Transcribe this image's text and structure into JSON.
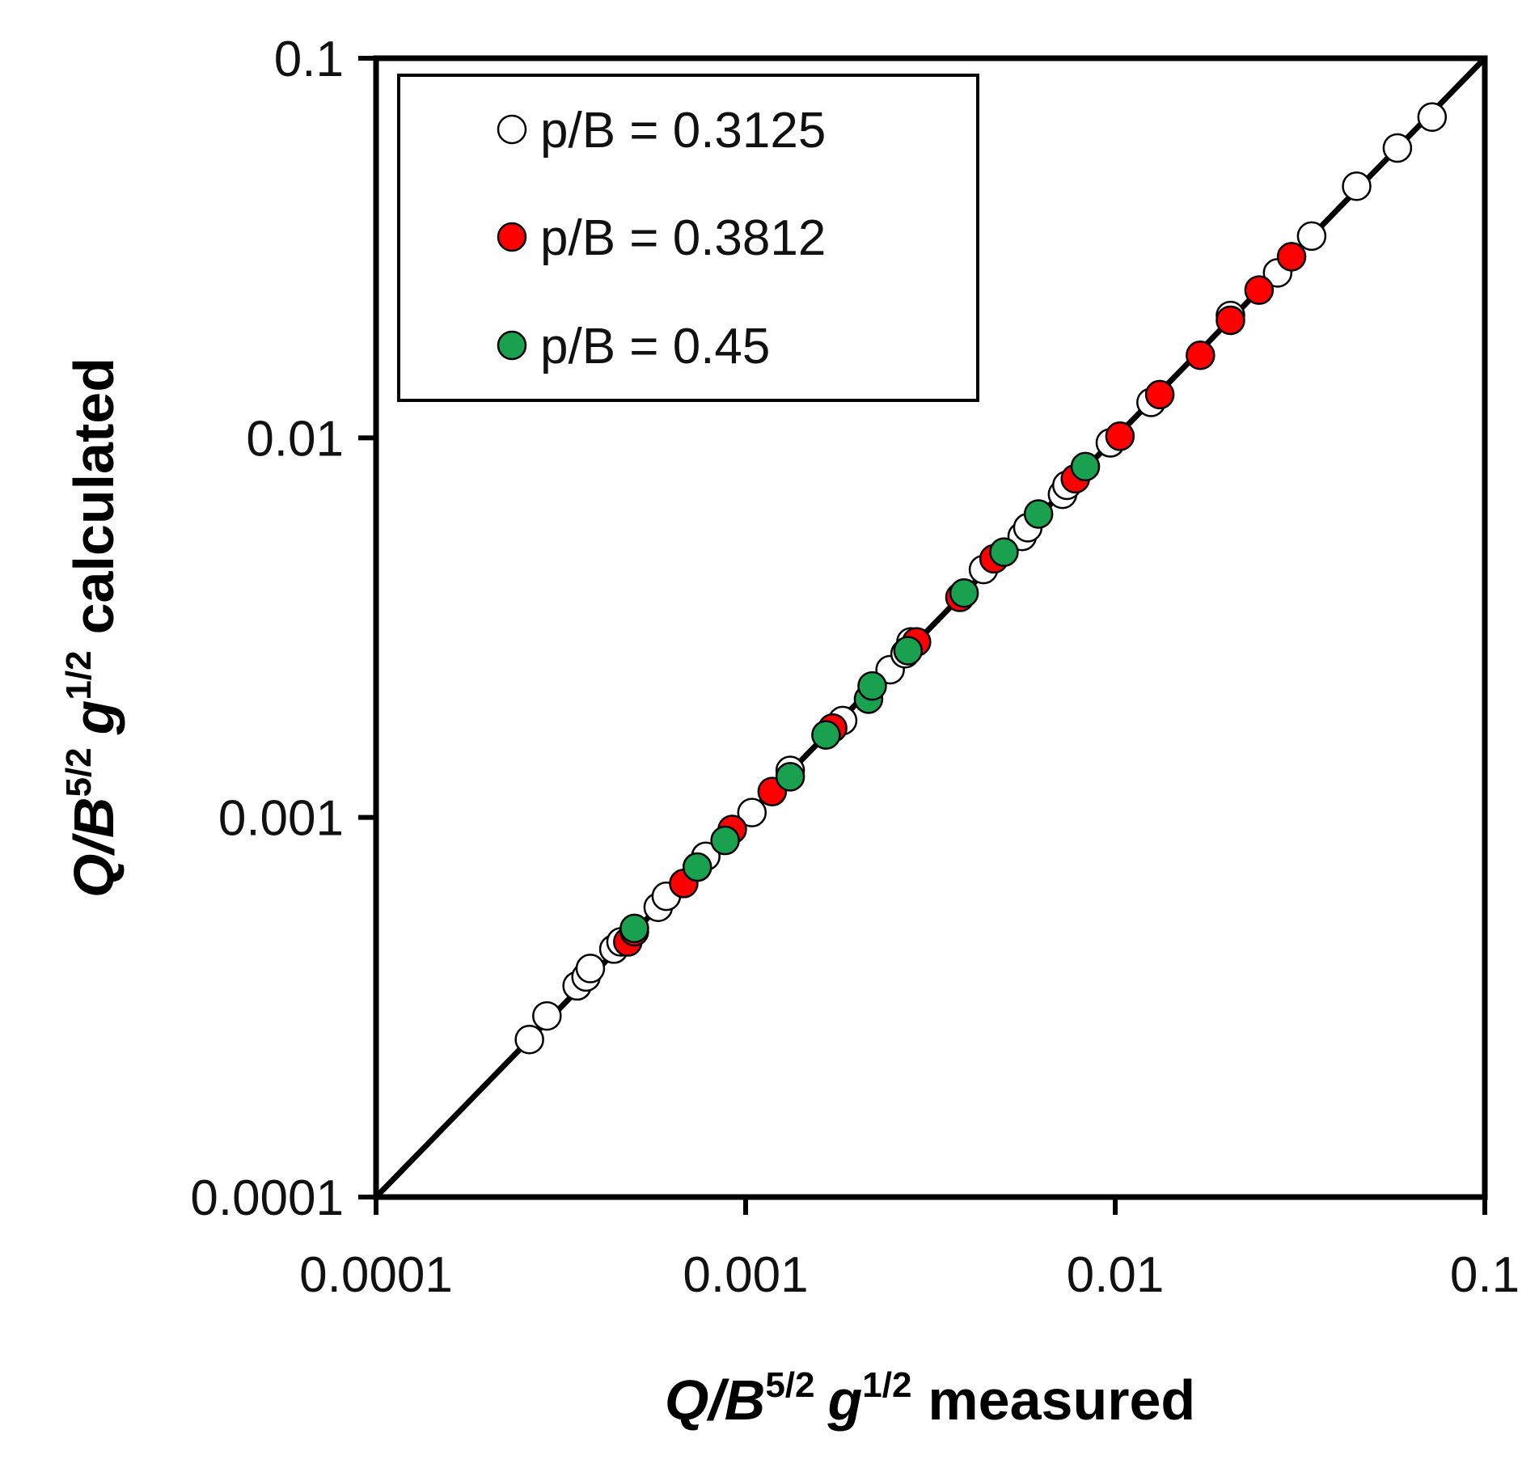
{
  "chart_data": {
    "type": "scatter",
    "title": "",
    "xlabel": {
      "q": "Q",
      "slash": "/",
      "b": "B",
      "b_exp": "5/2",
      "g": "g",
      "g_exp": "1/2",
      "suffix": "measured"
    },
    "ylabel": {
      "q": "Q",
      "slash": "/",
      "b": "B",
      "b_exp": "5/2",
      "g": "g",
      "g_exp": "1/2",
      "suffix": "calculated"
    },
    "xscale": "log",
    "yscale": "log",
    "xlim": [
      0.0001,
      0.1
    ],
    "ylim": [
      0.0001,
      0.1
    ],
    "xticks": [
      {
        "value": 0.0001,
        "label": "0.0001"
      },
      {
        "value": 0.001,
        "label": "0.001"
      },
      {
        "value": 0.01,
        "label": "0.01"
      },
      {
        "value": 0.1,
        "label": "0.1"
      }
    ],
    "yticks": [
      {
        "value": 0.0001,
        "label": "0.0001"
      },
      {
        "value": 0.001,
        "label": "0.001"
      },
      {
        "value": 0.01,
        "label": "0.01"
      },
      {
        "value": 0.1,
        "label": "0.1"
      }
    ],
    "grid": false,
    "reference_line": {
      "type": "1:1",
      "from": [
        0.0001,
        0.0001
      ],
      "to": [
        0.1,
        0.1
      ]
    },
    "legend": {
      "position": "top-left"
    },
    "series": [
      {
        "name": "p/B = 0.3125",
        "color": "#ffffff",
        "points": [
          [
            0.00026,
            0.00026
          ],
          [
            0.00029,
            0.0003
          ],
          [
            0.00035,
            0.00036
          ],
          [
            0.00037,
            0.00038
          ],
          [
            0.00038,
            0.0004
          ],
          [
            0.00044,
            0.00045
          ],
          [
            0.00046,
            0.00047
          ],
          [
            0.00058,
            0.00058
          ],
          [
            0.00061,
            0.00062
          ],
          [
            0.00074,
            0.00074
          ],
          [
            0.00078,
            0.00079
          ],
          [
            0.00104,
            0.00103
          ],
          [
            0.00132,
            0.00133
          ],
          [
            0.00183,
            0.0018
          ],
          [
            0.00246,
            0.00245
          ],
          [
            0.0027,
            0.0027
          ],
          [
            0.0028,
            0.0029
          ],
          [
            0.0044,
            0.0045
          ],
          [
            0.0056,
            0.0055
          ],
          [
            0.0058,
            0.0058
          ],
          [
            0.0072,
            0.0071
          ],
          [
            0.0074,
            0.0075
          ],
          [
            0.0097,
            0.0097
          ],
          [
            0.0125,
            0.0124
          ],
          [
            0.0205,
            0.021
          ],
          [
            0.0275,
            0.0272
          ],
          [
            0.034,
            0.034
          ],
          [
            0.045,
            0.046
          ],
          [
            0.058,
            0.058
          ],
          [
            0.072,
            0.07
          ]
        ]
      },
      {
        "name": "p/B = 0.3812",
        "color": "#ff0000",
        "points": [
          [
            0.00048,
            0.00047
          ],
          [
            0.0005,
            0.0005
          ],
          [
            0.00068,
            0.00067
          ],
          [
            0.00092,
            0.00093
          ],
          [
            0.00118,
            0.00117
          ],
          [
            0.00172,
            0.00172
          ],
          [
            0.0029,
            0.0029
          ],
          [
            0.0038,
            0.0038
          ],
          [
            0.0047,
            0.0048
          ],
          [
            0.0078,
            0.0078
          ],
          [
            0.0103,
            0.0101
          ],
          [
            0.0132,
            0.013
          ],
          [
            0.017,
            0.0165
          ],
          [
            0.0205,
            0.0204
          ],
          [
            0.0245,
            0.0245
          ],
          [
            0.03,
            0.03
          ]
        ]
      },
      {
        "name": "p/B = 0.45",
        "color": "#1aa150",
        "points": [
          [
            0.0005,
            0.00051
          ],
          [
            0.00074,
            0.00074
          ],
          [
            0.00088,
            0.00087
          ],
          [
            0.00132,
            0.00128
          ],
          [
            0.00165,
            0.00165
          ],
          [
            0.00215,
            0.00205
          ],
          [
            0.0022,
            0.00222
          ],
          [
            0.00275,
            0.00275
          ],
          [
            0.0039,
            0.0039
          ],
          [
            0.005,
            0.005
          ],
          [
            0.0062,
            0.0063
          ],
          [
            0.0083,
            0.0084
          ]
        ]
      }
    ]
  }
}
